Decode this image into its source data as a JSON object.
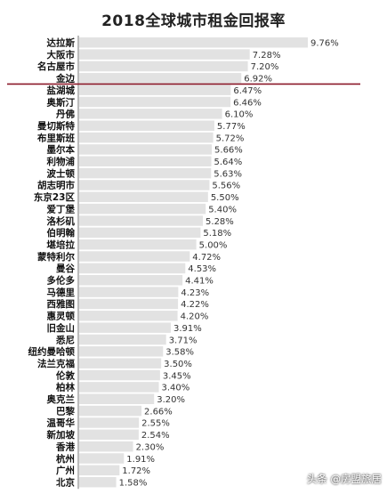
{
  "chart_data": {
    "type": "bar",
    "orientation": "horizontal",
    "title": "2018全球城市租金回报率",
    "categories": [
      "达拉斯",
      "大阪市",
      "名古屋市",
      "金边",
      "盐湖城",
      "奥斯汀",
      "丹佛",
      "曼切斯特",
      "布里斯班",
      "墨尔本",
      "利物浦",
      "波士顿",
      "胡志明市",
      "东京23区",
      "爱丁堡",
      "洛杉矶",
      "伯明翰",
      "堪培拉",
      "蒙特利尔",
      "曼谷",
      "多伦多",
      "马德里",
      "西雅图",
      "惠灵顿",
      "旧金山",
      "悉尼",
      "纽约曼哈顿",
      "法兰克福",
      "伦敦",
      "柏林",
      "奥克兰",
      "巴黎",
      "温哥华",
      "新加坡",
      "香港",
      "杭州",
      "广州",
      "北京"
    ],
    "values": [
      9.76,
      7.28,
      7.2,
      6.92,
      6.47,
      6.46,
      6.1,
      5.77,
      5.72,
      5.66,
      5.64,
      5.63,
      5.56,
      5.5,
      5.4,
      5.28,
      5.18,
      5.0,
      4.72,
      4.53,
      4.41,
      4.23,
      4.22,
      4.2,
      3.91,
      3.71,
      3.58,
      3.5,
      3.45,
      3.4,
      3.2,
      2.66,
      2.55,
      2.54,
      2.3,
      1.91,
      1.72,
      1.58
    ],
    "value_labels": [
      "9.76%",
      "7.28%",
      "7.20%",
      "6.92%",
      "6.47%",
      "6.46%",
      "6.10%",
      "5.77%",
      "5.72%",
      "5.66%",
      "5.64%",
      "5.63%",
      "5.56%",
      "5.50%",
      "5.40%",
      "5.28%",
      "5.18%",
      "5.00%",
      "4.72%",
      "4.53%",
      "4.41%",
      "4.23%",
      "4.22%",
      "4.20%",
      "3.91%",
      "3.71%",
      "3.58%",
      "3.50%",
      "3.45%",
      "3.40%",
      "3.20%",
      "2.66%",
      "2.55%",
      "2.54%",
      "2.30%",
      "1.91%",
      "1.72%",
      "1.58%"
    ],
    "bar_color": "#e2e2e2",
    "label_color": "#333333",
    "highlight_line_color": "#8b1a2a",
    "highlight_after_category": "金边",
    "xlabel": "",
    "ylabel": "",
    "grid": false
  },
  "watermark": "头条 @房盟旅居"
}
